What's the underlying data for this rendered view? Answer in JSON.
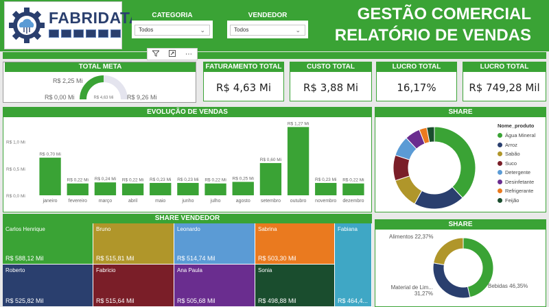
{
  "header": {
    "logo_text": "FABRIDATA",
    "title_line1": "GESTÃO COMERCIAL",
    "title_line2": "RELATÓRIO DE VENDAS"
  },
  "slicers": [
    {
      "title": "CATEGORIA",
      "value": "Todos"
    },
    {
      "title": "VENDEDOR",
      "value": "Todos"
    }
  ],
  "kpis": {
    "meta": {
      "title": "TOTAL META",
      "target": "R$ 2,25 Mi",
      "min": "R$ 0,00 Mi",
      "max": "R$ 9,26 Mi",
      "center": "R$ 4,63 Mi",
      "fraction": 0.5
    },
    "faturamento": {
      "title": "FATURAMENTO TOTAL",
      "value": "R$ 4,63 Mi"
    },
    "custo": {
      "title": "CUSTO TOTAL",
      "value": "R$ 3,88 Mi"
    },
    "lucro_pct": {
      "title": "LUCRO TOTAL",
      "value": "16,17%"
    },
    "lucro_abs": {
      "title": "LUCRO TOTAL",
      "value": "R$ 749,28 Mil"
    }
  },
  "chart_data": [
    {
      "type": "bar",
      "title": "EVOLUÇÃO DE VENDAS",
      "categories": [
        "janeiro",
        "fevereiro",
        "março",
        "abril",
        "maio",
        "junho",
        "julho",
        "agosto",
        "setembro",
        "outubro",
        "novembro",
        "dezembro"
      ],
      "values": [
        0.7,
        0.22,
        0.24,
        0.22,
        0.23,
        0.23,
        0.22,
        0.25,
        0.6,
        1.27,
        0.23,
        0.22
      ],
      "data_labels": [
        "R$ 0,70 Mi",
        "R$ 0,22 Mi",
        "R$ 0,24 Mi",
        "R$ 0,22 Mi",
        "R$ 0,23 Mi",
        "R$ 0,23 Mi",
        "R$ 0,22 Mi",
        "R$ 0,25 Mi",
        "R$ 0,60 Mi",
        "R$ 1,27 Mi",
        "R$ 0,23 Mi",
        "R$ 0,22 Mi"
      ],
      "yticks": [
        "R$ 1,0 Mi",
        "R$ 0,5 Mi",
        "R$ 0,0 Mi"
      ],
      "ylim": [
        0,
        1.3
      ],
      "color": "#3aa335"
    },
    {
      "type": "pie",
      "title": "SHARE",
      "legend_title": "Nome_produto",
      "legend_position": "right",
      "categories": [
        "Água Mineral",
        "Arroz",
        "Sabão",
        "Suco",
        "Detergente",
        "Desinfetante",
        "Refrigerante",
        "Feijão"
      ],
      "values": [
        38,
        20,
        12,
        10,
        8,
        6,
        3,
        3
      ],
      "colors": [
        "#3aa335",
        "#2a3f6e",
        "#b0962a",
        "#7a1e28",
        "#5b9bd5",
        "#6a2d8f",
        "#ea7a1f",
        "#1a4d2e"
      ]
    },
    {
      "type": "pie",
      "title": "SHARE",
      "categories": [
        "Bebidas",
        "Material de Lim...",
        "Alimentos"
      ],
      "values": [
        46.35,
        31.27,
        22.37
      ],
      "data_labels": [
        "Bebidas 46,35%",
        "Material de Lim...\n31,27%",
        "Alimentos 22,37%"
      ],
      "colors": [
        "#3aa335",
        "#2a3f6e",
        "#b0962a"
      ]
    }
  ],
  "treemap": {
    "title": "SHARE VENDEDOR",
    "cells": [
      {
        "name": "Carlos Henrique",
        "value": "R$ 588,12 Mil",
        "color": "#3aa335"
      },
      {
        "name": "Roberto",
        "value": "R$ 525,82 Mil",
        "color": "#2a3f6e"
      },
      {
        "name": "Bruno",
        "value": "R$ 515,81 Mil",
        "color": "#b0962a"
      },
      {
        "name": "Fabricio",
        "value": "R$ 515,64 Mil",
        "color": "#7a1e28"
      },
      {
        "name": "Leonardo",
        "value": "R$ 514,74 Mil",
        "color": "#5b9bd5"
      },
      {
        "name": "Ana Paula",
        "value": "R$ 505,68 Mil",
        "color": "#6a2d8f"
      },
      {
        "name": "Sabrina",
        "value": "R$ 503,30 Mil",
        "color": "#ea7a1f"
      },
      {
        "name": "Sonia",
        "value": "R$ 498,88 Mil",
        "color": "#1a4d2e"
      },
      {
        "name": "Fabiana",
        "value": "R$ 464,4...",
        "color": "#3fa7c5"
      }
    ]
  }
}
